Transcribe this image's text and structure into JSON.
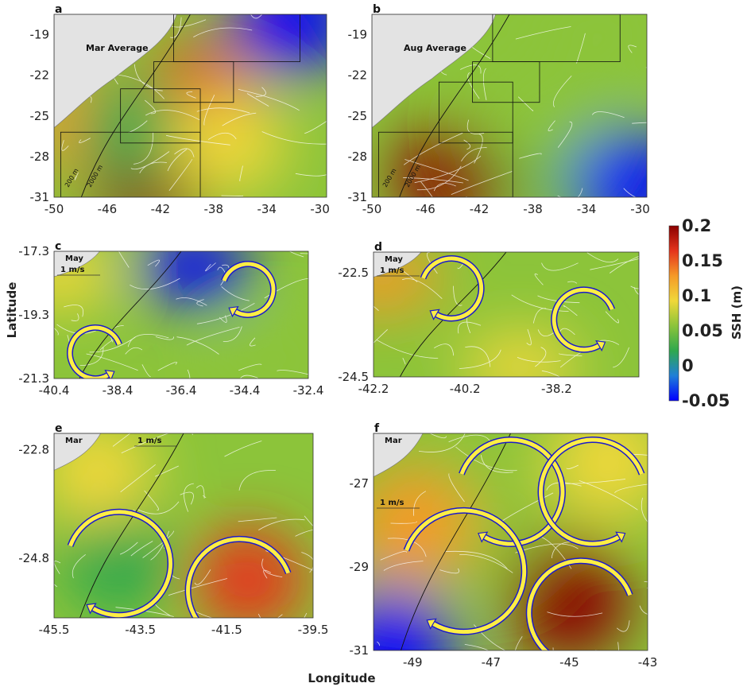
{
  "figure": {
    "xlabel": "Longitude",
    "ylabel": "Latitude",
    "colorbar": {
      "label": "SSH (m)",
      "ticks": [
        "0.2",
        "0.15",
        "0.1",
        "0.05",
        "0",
        "-0.05"
      ],
      "range": [
        -0.05,
        0.2
      ],
      "colors": [
        "#0000ff",
        "#1f7fd8",
        "#2fa84e",
        "#8cc43a",
        "#f0d83a",
        "#f59a28",
        "#e5341c",
        "#8b0000"
      ]
    },
    "land_color": "#e3e3e3"
  },
  "chart_data": [
    {
      "type": "heatmap",
      "panel": "a",
      "label": "Mar Average",
      "xticks": [
        "-50",
        "-46",
        "-42",
        "-38",
        "-34",
        "-30"
      ],
      "yticks": [
        "-19",
        "-22",
        "-25",
        "-28",
        "-31"
      ],
      "xlim": [
        -50,
        -29.5
      ],
      "ylim": [
        -31,
        -17.5
      ],
      "isobaths": [
        "200 m",
        "2000 m"
      ],
      "boxes": [
        [
          -41,
          -31.5,
          -21,
          -17.5
        ],
        [
          -42.5,
          -36.5,
          -24,
          -21
        ],
        [
          -45,
          -39,
          -27,
          -23
        ],
        [
          -49.5,
          -39,
          -31,
          -26.2
        ]
      ],
      "anomalies": [
        {
          "x": -43,
          "y": -29.5,
          "v": 0.19
        },
        {
          "x": -47.5,
          "y": -25.5,
          "v": 0.14
        },
        {
          "x": -39,
          "y": -23.5,
          "v": 0.17
        },
        {
          "x": -32,
          "y": -18,
          "v": -0.04
        },
        {
          "x": -44,
          "y": -26,
          "v": 0.03
        },
        {
          "x": -37,
          "y": -27,
          "v": 0.08
        }
      ]
    },
    {
      "type": "heatmap",
      "panel": "b",
      "label": "Aug Average",
      "xticks": [
        "-50",
        "-46",
        "-42",
        "-38",
        "-34",
        "-30"
      ],
      "yticks": [
        "-19",
        "-22",
        "-25",
        "-28",
        "-31"
      ],
      "xlim": [
        -50,
        -29.5
      ],
      "ylim": [
        -31,
        -17.5
      ],
      "isobaths": [
        "200 m",
        "2000 m"
      ],
      "boxes": [
        [
          -41,
          -31.5,
          -21,
          -17.5
        ],
        [
          -42.5,
          -37.5,
          -24,
          -21
        ],
        [
          -45,
          -39.5,
          -27,
          -22.5
        ],
        [
          -49.5,
          -39.5,
          -31,
          -26.2
        ]
      ],
      "anomalies": [
        {
          "x": -44,
          "y": -29.5,
          "v": 0.19
        },
        {
          "x": -37,
          "y": -27,
          "v": 0.02
        },
        {
          "x": -30.5,
          "y": -30,
          "v": -0.04
        },
        {
          "x": -38,
          "y": -25.5,
          "v": 0.07
        },
        {
          "x": -33,
          "y": -19,
          "v": 0.04
        }
      ]
    },
    {
      "type": "heatmap",
      "panel": "c",
      "label": "May",
      "scale": "1 m/s",
      "xticks": [
        "-40.4",
        "-38.4",
        "-36.4",
        "-34.4",
        "-32.4"
      ],
      "yticks": [
        "-17.3",
        "-19.3",
        "-21.3"
      ],
      "xlim": [
        -40.4,
        -32.4
      ],
      "ylim": [
        -21.3,
        -17.3
      ],
      "eddies": [
        {
          "x": -34.3,
          "y": -18.5,
          "r": 0.25,
          "dir": "cw"
        },
        {
          "x": -39.1,
          "y": -20.5,
          "r": 0.25,
          "dir": "ccw"
        }
      ],
      "anomalies": [
        {
          "x": -36,
          "y": -17.8,
          "v": -0.05
        },
        {
          "x": -40.2,
          "y": -18,
          "v": 0.1
        },
        {
          "x": -33.5,
          "y": -20.7,
          "v": 0.04
        }
      ]
    },
    {
      "type": "heatmap",
      "panel": "d",
      "label": "May",
      "scale": "1 m/s",
      "xticks": [
        "-42.2",
        "-40.2",
        "-38.2"
      ],
      "yticks": [
        "-22.5",
        "-24.5"
      ],
      "xlim": [
        -42.2,
        -36.4
      ],
      "ylim": [
        -24.5,
        -22.1
      ],
      "eddies": [
        {
          "x": -40.5,
          "y": -22.8,
          "r": 0.3,
          "dir": "cw"
        },
        {
          "x": -37.6,
          "y": -23.4,
          "r": 0.3,
          "dir": "ccw"
        }
      ],
      "anomalies": [
        {
          "x": -42,
          "y": -22.6,
          "v": 0.12
        },
        {
          "x": -39,
          "y": -24.3,
          "v": 0.08
        }
      ]
    },
    {
      "type": "heatmap",
      "panel": "e",
      "label": "Mar",
      "scale": "1 m/s",
      "xticks": [
        "-45.5",
        "-43.5",
        "-41.5",
        "-39.5"
      ],
      "yticks": [
        "-22.8",
        "-24.8"
      ],
      "xlim": [
        -45.5,
        -39.5
      ],
      "ylim": [
        -25.9,
        -22.5
      ],
      "eddies": [
        {
          "x": -44,
          "y": -24.9,
          "r": 0.35,
          "dir": "cw"
        },
        {
          "x": -41.2,
          "y": -25.4,
          "r": 0.35,
          "dir": "ccw"
        }
      ],
      "anomalies": [
        {
          "x": -44,
          "y": -24.9,
          "v": 0.01
        },
        {
          "x": -41,
          "y": -25.2,
          "v": 0.17
        },
        {
          "x": -44.5,
          "y": -23.2,
          "v": 0.11
        }
      ]
    },
    {
      "type": "heatmap",
      "panel": "f",
      "label": "Mar",
      "scale": "1 m/s",
      "xticks": [
        "-49",
        "-47",
        "-45",
        "-43"
      ],
      "yticks": [
        "-27",
        "-29",
        "-31"
      ],
      "xlim": [
        -50,
        -43
      ],
      "ylim": [
        -31,
        -25.8
      ],
      "eddies": [
        {
          "x": -46.5,
          "y": -27.2,
          "r": 0.3,
          "dir": "cw"
        },
        {
          "x": -47.7,
          "y": -29.1,
          "r": 0.35,
          "dir": "cw"
        },
        {
          "x": -44.4,
          "y": -27.2,
          "r": 0.3,
          "dir": "ccw"
        },
        {
          "x": -44.7,
          "y": -30.1,
          "r": 0.3,
          "dir": "ccw"
        }
      ],
      "anomalies": [
        {
          "x": -45,
          "y": -29.8,
          "v": 0.19
        },
        {
          "x": -47.2,
          "y": -27.8,
          "v": 0.04
        },
        {
          "x": -49,
          "y": -28,
          "v": 0.12
        },
        {
          "x": -49.5,
          "y": -31,
          "v": -0.04
        },
        {
          "x": -44,
          "y": -26.5,
          "v": 0.1
        }
      ]
    }
  ]
}
